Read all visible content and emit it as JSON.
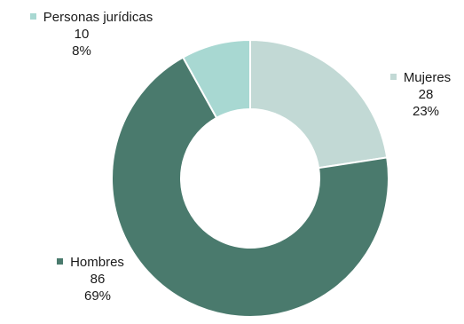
{
  "chart_data": {
    "type": "donut",
    "start_angle_deg": 0,
    "direction": "clockwise",
    "slices": [
      {
        "name": "Mujeres",
        "value": 28,
        "percent": "23%",
        "color": "#c2d9d5"
      },
      {
        "name": "Hombres",
        "value": 86,
        "percent": "69%",
        "color": "#4a7a6d"
      },
      {
        "name": "Personas jurídicas",
        "value": 10,
        "percent": "8%",
        "color": "#a8d8d2"
      }
    ],
    "legend": "per-slice labels"
  }
}
